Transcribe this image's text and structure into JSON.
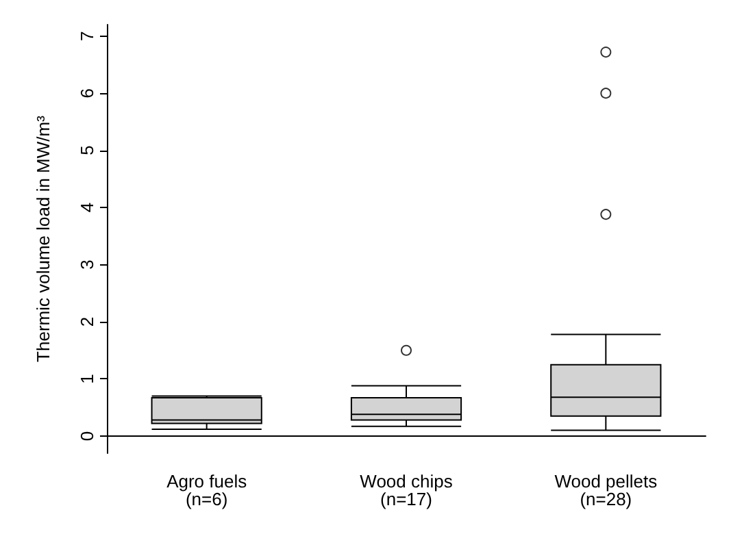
{
  "chart_data": {
    "type": "box",
    "ylabel": "Thermic volume load in MW/m³",
    "categories": [
      "Agro fuels\n(n=6)",
      "Wood chips\n(n=17)",
      "Wood pellets\n(n=28)"
    ],
    "color": "#d3d3d3",
    "boxes": [
      {
        "low": 0.12,
        "q1": 0.22,
        "median": 0.28,
        "q3": 0.67,
        "high": 0.7
      },
      {
        "low": 0.17,
        "q1": 0.28,
        "median": 0.38,
        "q3": 0.67,
        "high": 0.88,
        "outliers": [
          1.5
        ]
      },
      {
        "low": 0.1,
        "q1": 0.35,
        "median": 0.68,
        "q3": 1.25,
        "high": 1.78,
        "outliers": [
          3.88,
          6.0,
          6.72
        ]
      }
    ],
    "ylim": [
      -0.3,
      7.2
    ],
    "yticks": [
      0,
      1,
      2,
      3,
      4,
      5,
      6,
      7
    ],
    "grid": false
  }
}
